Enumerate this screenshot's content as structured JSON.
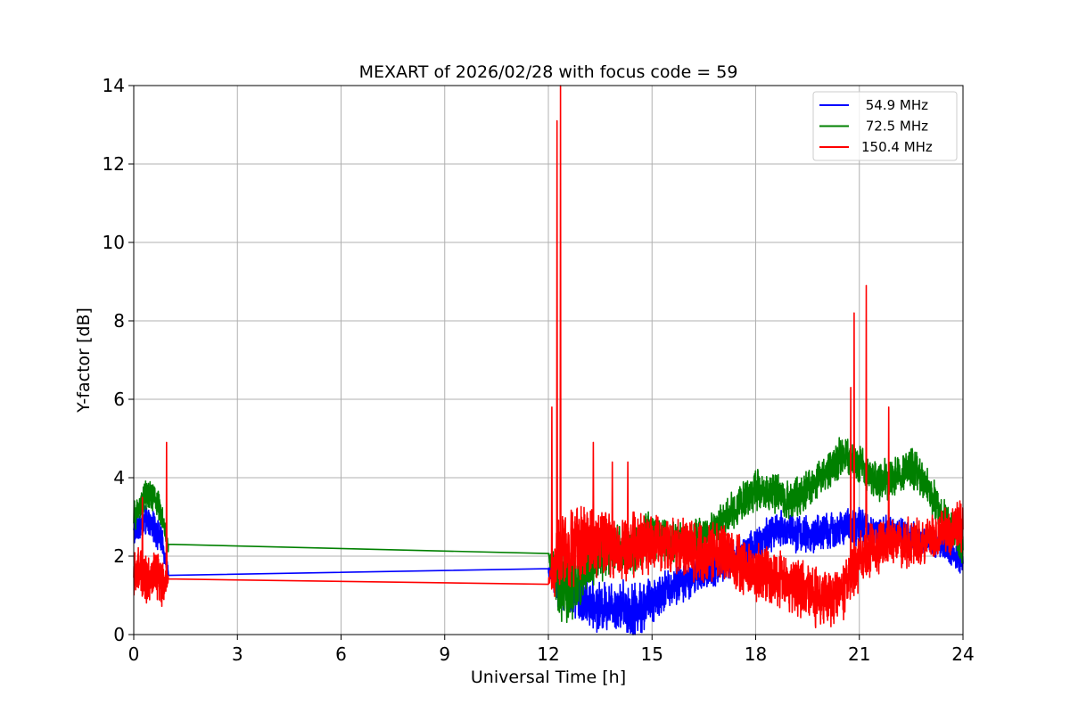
{
  "chart_data": {
    "type": "line",
    "title": "MEXART of 2026/02/28 with focus code = 59",
    "xlabel": "Universal Time [h]",
    "ylabel": "Y-factor [dB]",
    "xlim": [
      0,
      24
    ],
    "ylim": [
      0,
      14
    ],
    "xticks": [
      0,
      3,
      6,
      9,
      12,
      15,
      18,
      21,
      24
    ],
    "yticks": [
      0,
      2,
      4,
      6,
      8,
      10,
      12,
      14
    ],
    "grid": true,
    "legend_position": "top-right",
    "series": [
      {
        "name": " 54.9 MHz",
        "color": "#0000ff",
        "x": [
          0,
          0.2,
          0.4,
          0.6,
          0.8,
          1.0,
          12.0,
          12.3,
          12.6,
          13.0,
          13.5,
          14.0,
          14.5,
          15.0,
          15.5,
          16.0,
          16.5,
          17.0,
          17.5,
          18.0,
          18.5,
          19.0,
          19.5,
          20.0,
          20.5,
          21.0,
          21.5,
          22.0,
          22.5,
          23.0,
          23.5,
          24.0
        ],
        "y": [
          2.6,
          2.8,
          2.9,
          2.7,
          2.4,
          1.6,
          1.6,
          1.4,
          1.2,
          0.9,
          0.7,
          0.8,
          0.6,
          0.9,
          1.2,
          1.4,
          1.6,
          1.8,
          2.0,
          2.3,
          2.6,
          2.7,
          2.5,
          2.6,
          2.7,
          2.8,
          2.6,
          2.7,
          2.5,
          2.4,
          2.2,
          1.8
        ],
        "envelope": [
          0.3,
          0.3,
          0.3,
          0.3,
          0.3,
          0.1,
          0.1,
          0.6,
          0.6,
          0.5,
          0.5,
          0.5,
          0.6,
          0.5,
          0.4,
          0.4,
          0.4,
          0.4,
          0.4,
          0.4,
          0.4,
          0.4,
          0.4,
          0.4,
          0.4,
          0.4,
          0.3,
          0.3,
          0.3,
          0.3,
          0.3,
          0.3
        ]
      },
      {
        "name": " 72.5 MHz",
        "color": "#008000",
        "x": [
          0,
          0.2,
          0.4,
          0.6,
          0.8,
          1.0,
          12.0,
          12.3,
          12.6,
          13.0,
          13.5,
          14.0,
          14.5,
          15.0,
          15.5,
          16.0,
          16.5,
          17.0,
          17.5,
          18.0,
          18.5,
          19.0,
          19.5,
          20.0,
          20.5,
          21.0,
          21.5,
          22.0,
          22.5,
          23.0,
          23.5,
          24.0
        ],
        "y": [
          3.0,
          3.3,
          3.6,
          3.5,
          3.1,
          2.2,
          2.0,
          1.3,
          1.2,
          1.6,
          2.0,
          2.2,
          2.1,
          2.6,
          2.4,
          2.3,
          2.5,
          2.9,
          3.3,
          3.7,
          3.6,
          3.4,
          3.7,
          4.1,
          4.6,
          4.3,
          3.9,
          4.0,
          4.3,
          3.7,
          2.9,
          2.2
        ],
        "envelope": [
          0.3,
          0.3,
          0.3,
          0.3,
          0.3,
          0.1,
          0.1,
          0.8,
          0.7,
          0.6,
          0.5,
          0.5,
          0.5,
          0.5,
          0.4,
          0.4,
          0.4,
          0.4,
          0.4,
          0.4,
          0.4,
          0.4,
          0.4,
          0.4,
          0.4,
          0.4,
          0.4,
          0.4,
          0.4,
          0.4,
          0.4,
          0.4
        ]
      },
      {
        "name": "150.4 MHz",
        "color": "#ff0000",
        "x": [
          0,
          0.2,
          0.4,
          0.6,
          0.8,
          1.0,
          12.0,
          12.3,
          12.6,
          13.0,
          13.5,
          14.0,
          14.5,
          15.0,
          15.5,
          16.0,
          16.5,
          17.0,
          17.5,
          18.0,
          18.5,
          19.0,
          19.5,
          20.0,
          20.5,
          21.0,
          21.5,
          22.0,
          22.5,
          23.0,
          23.5,
          24.0
        ],
        "y": [
          1.5,
          1.6,
          1.4,
          1.5,
          1.3,
          1.4,
          1.35,
          2.0,
          2.2,
          2.3,
          2.4,
          2.2,
          2.3,
          2.4,
          2.3,
          2.2,
          2.0,
          2.1,
          1.8,
          1.6,
          1.5,
          1.3,
          1.1,
          0.9,
          1.0,
          1.9,
          2.2,
          2.4,
          2.3,
          2.5,
          2.6,
          2.8
        ],
        "envelope": [
          0.5,
          0.5,
          0.5,
          0.5,
          0.5,
          0.1,
          0.1,
          0.9,
          0.8,
          0.8,
          0.7,
          0.7,
          0.7,
          0.6,
          0.6,
          0.6,
          0.6,
          0.6,
          0.6,
          0.6,
          0.6,
          0.6,
          0.6,
          0.6,
          0.6,
          0.6,
          0.5,
          0.5,
          0.5,
          0.5,
          0.5,
          0.5
        ],
        "spikes": [
          [
            0.25,
            3.5
          ],
          [
            0.95,
            4.9
          ],
          [
            12.1,
            5.8
          ],
          [
            12.25,
            13.1
          ],
          [
            12.35,
            14.0
          ],
          [
            13.3,
            4.9
          ],
          [
            13.85,
            4.4
          ],
          [
            14.3,
            4.4
          ],
          [
            20.75,
            6.3
          ],
          [
            20.85,
            8.2
          ],
          [
            21.2,
            8.9
          ],
          [
            21.85,
            5.8
          ]
        ]
      }
    ]
  }
}
